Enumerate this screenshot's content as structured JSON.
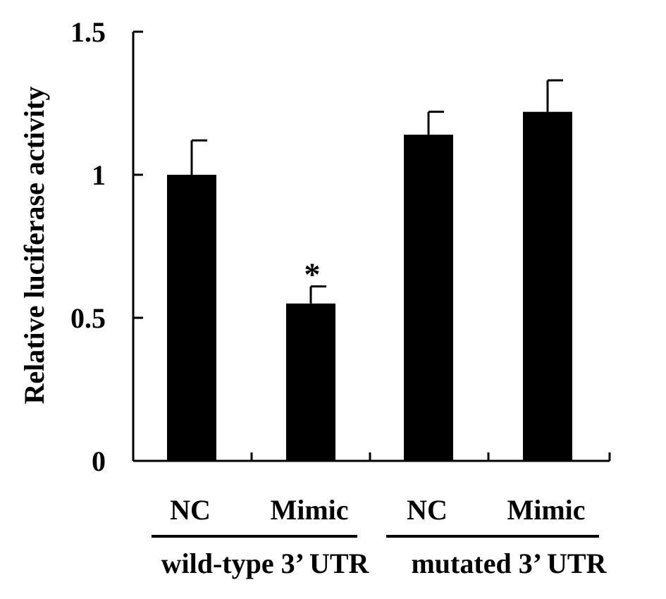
{
  "chart_data": {
    "type": "bar",
    "ylabel": "Relative luciferase activity",
    "ylim": [
      0,
      1.5
    ],
    "yticks": [
      0,
      0.5,
      1,
      1.5
    ],
    "ytick_labels": [
      "0",
      "0.5",
      "1",
      "1.5"
    ],
    "grid": false,
    "legend": "none",
    "bar_color": "#000000",
    "categories": [
      "NC",
      "Mimic",
      "NC",
      "Mimic"
    ],
    "groups": [
      {
        "label": "wild-type 3’ UTR",
        "categories": [
          "NC",
          "Mimic"
        ]
      },
      {
        "label": "mutated 3’ UTR",
        "categories": [
          "NC",
          "Mimic"
        ]
      }
    ],
    "values": [
      1.0,
      0.55,
      1.14,
      1.22
    ],
    "errors": [
      0.12,
      0.06,
      0.08,
      0.11
    ],
    "annotations": [
      {
        "bar_index": 1,
        "text": "*"
      }
    ]
  }
}
